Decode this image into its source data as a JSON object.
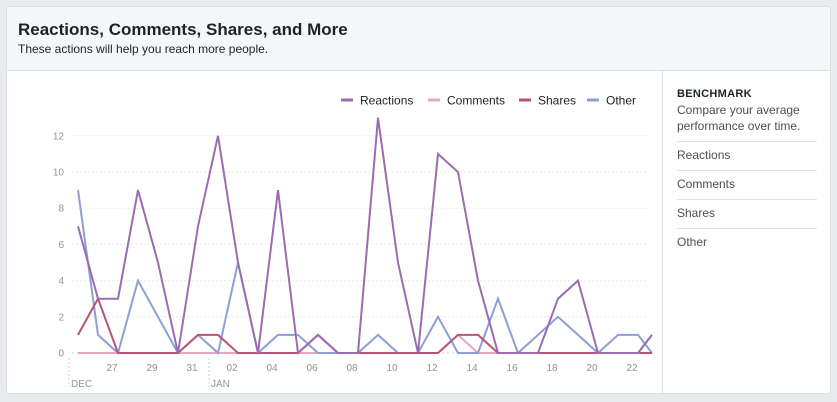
{
  "header": {
    "title": "Reactions, Comments, Shares, and More",
    "subtitle": "These actions will help you reach more people."
  },
  "sidebar": {
    "title": "BENCHMARK",
    "description": "Compare your average performance over time.",
    "items": [
      {
        "label": "Reactions"
      },
      {
        "label": "Comments"
      },
      {
        "label": "Shares"
      },
      {
        "label": "Other"
      }
    ]
  },
  "chart_data": {
    "type": "line",
    "x": [
      "Dec 25",
      "Dec 26",
      "Dec 27",
      "Dec 28",
      "Dec 29",
      "Dec 30",
      "Dec 31",
      "Jan 01",
      "Jan 02",
      "Jan 03",
      "Jan 04",
      "Jan 05",
      "Jan 06",
      "Jan 07",
      "Jan 08",
      "Jan 09",
      "Jan 10",
      "Jan 11",
      "Jan 12",
      "Jan 13",
      "Jan 14",
      "Jan 15",
      "Jan 16",
      "Jan 17",
      "Jan 18",
      "Jan 19",
      "Jan 20",
      "Jan 21",
      "Jan 22",
      "Jan 23"
    ],
    "x_ticks": [
      "27",
      "29",
      "31",
      "02",
      "04",
      "06",
      "08",
      "10",
      "12",
      "14",
      "16",
      "18",
      "20",
      "22"
    ],
    "x_tick_indices": [
      2,
      4,
      6,
      8,
      10,
      12,
      14,
      16,
      18,
      20,
      22,
      24,
      26,
      28
    ],
    "month_labels": [
      {
        "label": "DEC",
        "index": 0
      },
      {
        "label": "JAN",
        "index": 7
      }
    ],
    "y_ticks": [
      0,
      2,
      4,
      6,
      8,
      10,
      12
    ],
    "ylim": [
      0,
      13.6
    ],
    "grid": true,
    "legend_position": "top-right",
    "series": [
      {
        "name": "Reactions",
        "color": "#9c6bb0",
        "values": [
          7,
          3,
          3,
          9,
          5,
          0,
          7,
          12,
          5,
          0,
          9,
          0,
          1,
          0,
          0,
          13,
          5,
          0,
          11,
          10,
          4,
          0,
          0,
          0,
          3,
          4,
          0,
          0,
          0,
          1
        ]
      },
      {
        "name": "Comments",
        "color": "#e5a8c0",
        "values": [
          0,
          0,
          0,
          0,
          0,
          0,
          0,
          0,
          0,
          0,
          0,
          0,
          0,
          0,
          0,
          0,
          0,
          0,
          0,
          1,
          0,
          0,
          0,
          0,
          0,
          0,
          0,
          0,
          0,
          1
        ]
      },
      {
        "name": "Shares",
        "color": "#b8537a",
        "values": [
          1,
          3,
          0,
          0,
          0,
          0,
          1,
          1,
          0,
          0,
          0,
          0,
          1,
          0,
          0,
          0,
          0,
          0,
          0,
          1,
          1,
          0,
          0,
          0,
          0,
          0,
          0,
          0,
          0,
          0
        ]
      },
      {
        "name": "Other",
        "color": "#8c9fd6",
        "values": [
          9,
          1,
          0,
          4,
          2,
          0,
          1,
          0,
          5,
          0,
          1,
          1,
          0,
          0,
          0,
          1,
          0,
          0,
          2,
          0,
          0,
          3,
          0,
          1,
          2,
          1,
          0,
          1,
          1,
          0
        ]
      }
    ]
  }
}
